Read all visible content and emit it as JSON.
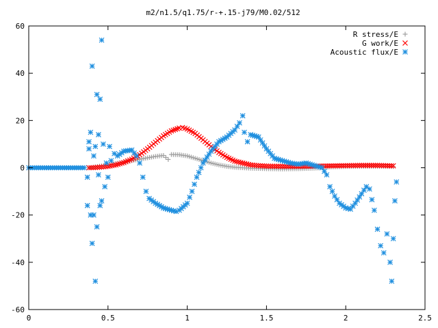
{
  "chart_data": {
    "type": "scatter",
    "title": "m2/n1.5/q1.75/r-+.15-j79/M0.02/512",
    "xlabel": "",
    "ylabel": "",
    "xlim": [
      0,
      2.5
    ],
    "ylim": [
      -60,
      60
    ],
    "x_ticks": [
      0,
      0.5,
      1,
      1.5,
      2,
      2.5
    ],
    "x_tick_labels": [
      "0",
      "0.5",
      "1",
      "1.5",
      "2",
      "2.5"
    ],
    "y_ticks": [
      -60,
      -40,
      -20,
      0,
      20,
      40,
      60
    ],
    "y_tick_labels": [
      "-60",
      "-40",
      "-20",
      "0",
      "20",
      "40",
      "60"
    ],
    "grid": false,
    "legend_position": "top-right",
    "series": [
      {
        "name": "R stress/E",
        "marker": "plus",
        "color": "#a0a0a0",
        "points": [
          [
            0.38,
            0.0
          ],
          [
            0.42,
            0.4
          ],
          [
            0.46,
            0.8
          ],
          [
            0.5,
            1.2
          ],
          [
            0.55,
            1.8
          ],
          [
            0.6,
            2.4
          ],
          [
            0.65,
            3.0
          ],
          [
            0.7,
            3.6
          ],
          [
            0.75,
            4.2
          ],
          [
            0.8,
            4.8
          ],
          [
            0.85,
            5.2
          ],
          [
            0.88,
            3.5
          ],
          [
            0.9,
            5.6
          ],
          [
            0.95,
            5.5
          ],
          [
            1.0,
            5.0
          ],
          [
            1.05,
            4.0
          ],
          [
            1.1,
            3.0
          ],
          [
            1.15,
            2.0
          ],
          [
            1.2,
            1.2
          ],
          [
            1.25,
            0.6
          ],
          [
            1.3,
            0.2
          ],
          [
            1.35,
            0.0
          ],
          [
            1.4,
            -0.2
          ],
          [
            1.5,
            -0.4
          ],
          [
            1.6,
            -0.5
          ],
          [
            1.7,
            -0.4
          ],
          [
            1.8,
            -0.2
          ],
          [
            1.85,
            0.0
          ],
          [
            1.9,
            0.3
          ],
          [
            2.0,
            0.5
          ],
          [
            2.1,
            0.6
          ],
          [
            2.2,
            0.6
          ],
          [
            2.3,
            0.5
          ]
        ]
      },
      {
        "name": "G work/E",
        "marker": "cross",
        "color": "#ff0000",
        "points": [
          [
            0.38,
            0.0
          ],
          [
            0.42,
            0.1
          ],
          [
            0.46,
            0.3
          ],
          [
            0.5,
            0.6
          ],
          [
            0.55,
            1.2
          ],
          [
            0.6,
            2.2
          ],
          [
            0.65,
            3.6
          ],
          [
            0.7,
            5.5
          ],
          [
            0.75,
            8.0
          ],
          [
            0.8,
            10.8
          ],
          [
            0.85,
            13.5
          ],
          [
            0.9,
            15.6
          ],
          [
            0.95,
            16.8
          ],
          [
            0.97,
            17.0
          ],
          [
            1.0,
            16.4
          ],
          [
            1.05,
            14.5
          ],
          [
            1.1,
            11.8
          ],
          [
            1.15,
            9.0
          ],
          [
            1.2,
            6.5
          ],
          [
            1.25,
            4.4
          ],
          [
            1.3,
            2.8
          ],
          [
            1.35,
            2.0
          ],
          [
            1.4,
            1.2
          ],
          [
            1.45,
            0.9
          ],
          [
            1.5,
            0.7
          ],
          [
            1.6,
            0.6
          ],
          [
            1.7,
            0.6
          ],
          [
            1.8,
            0.7
          ],
          [
            1.9,
            0.8
          ],
          [
            2.0,
            0.9
          ],
          [
            2.1,
            1.0
          ],
          [
            2.2,
            1.0
          ],
          [
            2.3,
            0.8
          ]
        ]
      },
      {
        "name": "Acoustic flux/E",
        "marker": "star",
        "color": "#1f8fdf",
        "points": [
          [
            0.0,
            0.0
          ],
          [
            0.05,
            0.0
          ],
          [
            0.1,
            0.0
          ],
          [
            0.15,
            0.0
          ],
          [
            0.2,
            0.0
          ],
          [
            0.25,
            0.0
          ],
          [
            0.3,
            0.0
          ],
          [
            0.35,
            0.0
          ],
          [
            0.37,
            -4.0
          ],
          [
            0.37,
            -16.0
          ],
          [
            0.38,
            11.0
          ],
          [
            0.38,
            8.0
          ],
          [
            0.39,
            15.0
          ],
          [
            0.39,
            -20.0
          ],
          [
            0.4,
            -32.0
          ],
          [
            0.4,
            43.0
          ],
          [
            0.41,
            -20.0
          ],
          [
            0.41,
            5.0
          ],
          [
            0.42,
            -48.0
          ],
          [
            0.42,
            9.0
          ],
          [
            0.43,
            31.0
          ],
          [
            0.43,
            -25.0
          ],
          [
            0.44,
            14.0
          ],
          [
            0.44,
            -3.0
          ],
          [
            0.45,
            29.0
          ],
          [
            0.45,
            -16.0
          ],
          [
            0.46,
            54.0
          ],
          [
            0.46,
            -14.0
          ],
          [
            0.47,
            10.0
          ],
          [
            0.48,
            -8.0
          ],
          [
            0.49,
            2.0
          ],
          [
            0.5,
            -4.0
          ],
          [
            0.51,
            9.0
          ],
          [
            0.52,
            3.0
          ],
          [
            0.54,
            6.0
          ],
          [
            0.56,
            5.0
          ],
          [
            0.6,
            7.0
          ],
          [
            0.65,
            7.5
          ],
          [
            0.68,
            5.0
          ],
          [
            0.7,
            2.0
          ],
          [
            0.72,
            -4.0
          ],
          [
            0.74,
            -10.0
          ],
          [
            0.76,
            -13.0
          ],
          [
            0.8,
            -15.0
          ],
          [
            0.85,
            -17.0
          ],
          [
            0.9,
            -18.0
          ],
          [
            0.93,
            -18.5
          ],
          [
            0.95,
            -18.0
          ],
          [
            1.0,
            -15.0
          ],
          [
            1.03,
            -10.0
          ],
          [
            1.06,
            -4.0
          ],
          [
            1.1,
            2.0
          ],
          [
            1.15,
            7.0
          ],
          [
            1.2,
            11.0
          ],
          [
            1.25,
            13.0
          ],
          [
            1.3,
            16.0
          ],
          [
            1.33,
            19.0
          ],
          [
            1.35,
            22.0
          ],
          [
            1.36,
            15.0
          ],
          [
            1.38,
            11.0
          ],
          [
            1.4,
            14.0
          ],
          [
            1.45,
            13.0
          ],
          [
            1.5,
            8.0
          ],
          [
            1.55,
            4.0
          ],
          [
            1.6,
            3.0
          ],
          [
            1.65,
            2.0
          ],
          [
            1.7,
            1.5
          ],
          [
            1.75,
            2.0
          ],
          [
            1.8,
            1.0
          ],
          [
            1.85,
            0.0
          ],
          [
            1.88,
            -3.0
          ],
          [
            1.9,
            -8.0
          ],
          [
            1.93,
            -12.0
          ],
          [
            1.96,
            -15.0
          ],
          [
            2.0,
            -17.0
          ],
          [
            2.03,
            -17.5
          ],
          [
            2.06,
            -15.0
          ],
          [
            2.1,
            -11.0
          ],
          [
            2.13,
            -8.0
          ],
          [
            2.15,
            -9.0
          ],
          [
            2.18,
            -18.0
          ],
          [
            2.2,
            -26.0
          ],
          [
            2.22,
            -33.0
          ],
          [
            2.24,
            -36.0
          ],
          [
            2.26,
            -28.0
          ],
          [
            2.28,
            -40.0
          ],
          [
            2.29,
            -48.0
          ],
          [
            2.3,
            -30.0
          ],
          [
            2.31,
            -14.0
          ],
          [
            2.32,
            -6.0
          ]
        ]
      }
    ]
  }
}
